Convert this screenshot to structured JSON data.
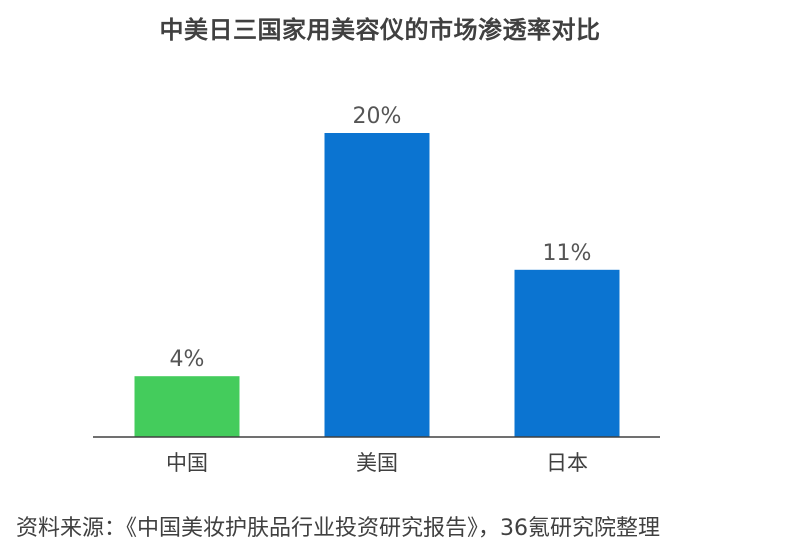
{
  "chart_data": {
    "type": "bar",
    "title": "中美日三国家用美容仪的市场渗透率对比",
    "categories": [
      "中国",
      "美国",
      "日本"
    ],
    "values": [
      4,
      20,
      11
    ],
    "data_labels": [
      "4%",
      "20%",
      "11%"
    ],
    "unit": "%",
    "colors": [
      "#44cc5c",
      "#0b74d1",
      "#0b74d1"
    ],
    "ylim": [
      0,
      20
    ],
    "grid": false,
    "legend": "none",
    "xlabel": "",
    "ylabel": ""
  },
  "source": "资料来源：《中国美妆护肤品行业投资研究报告》，36氪研究院整理"
}
